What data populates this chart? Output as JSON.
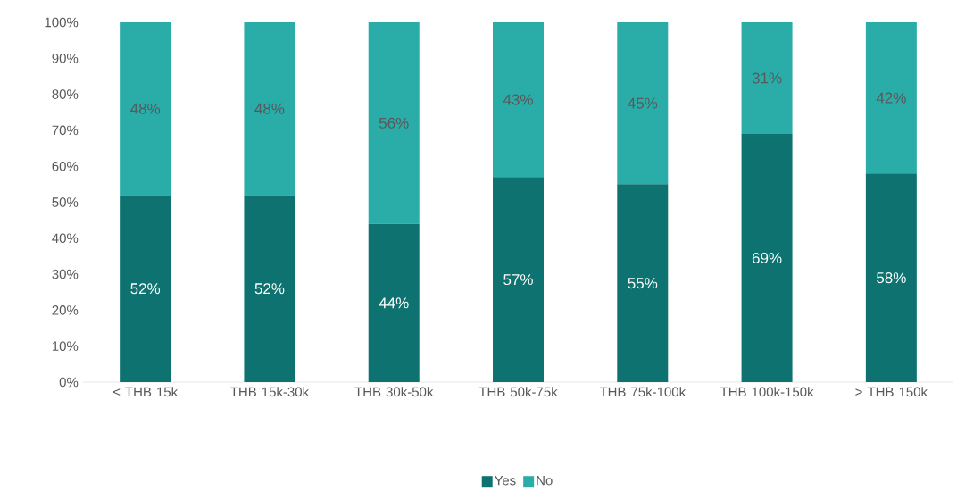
{
  "chart_data": {
    "type": "bar",
    "stacked": true,
    "categories": [
      "< THB 15k",
      "THB 15k-30k",
      "THB 30k-50k",
      "THB 50k-75k",
      "THB 75k-100k",
      "THB 100k-150k",
      "> THB 150k"
    ],
    "series": [
      {
        "name": "Yes",
        "color": "#0e7370",
        "values": [
          52,
          52,
          44,
          57,
          55,
          69,
          58
        ],
        "value_labels": [
          "52%",
          "52%",
          "44%",
          "57%",
          "55%",
          "69%",
          "58%"
        ]
      },
      {
        "name": "No",
        "color": "#2aaca9",
        "values": [
          48,
          48,
          56,
          43,
          45,
          31,
          42
        ],
        "value_labels": [
          "48%",
          "48%",
          "56%",
          "43%",
          "45%",
          "31%",
          "42%"
        ]
      }
    ],
    "ylim": [
      0,
      100
    ],
    "yticks": [
      {
        "value": 0,
        "label": "0%"
      },
      {
        "value": 10,
        "label": "10%"
      },
      {
        "value": 20,
        "label": "20%"
      },
      {
        "value": 30,
        "label": "30%"
      },
      {
        "value": 40,
        "label": "40%"
      },
      {
        "value": 50,
        "label": "50%"
      },
      {
        "value": 60,
        "label": "60%"
      },
      {
        "value": 70,
        "label": "70%"
      },
      {
        "value": 80,
        "label": "80%"
      },
      {
        "value": 90,
        "label": "90%"
      },
      {
        "value": 100,
        "label": "100%"
      }
    ],
    "legend": "bottom"
  }
}
